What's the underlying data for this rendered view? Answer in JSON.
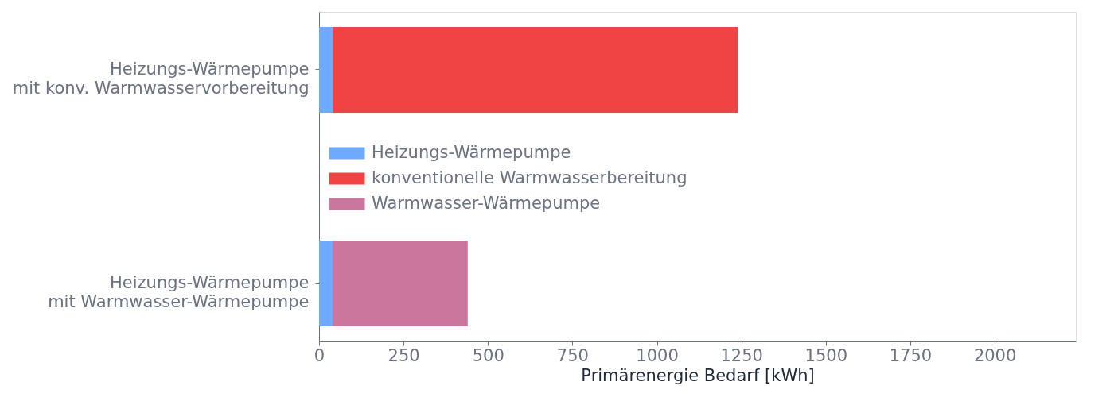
{
  "chart_data": {
    "type": "bar",
    "orientation": "horizontal",
    "stacked": true,
    "categories": [
      "Heizungs-Wärmepumpe\nmit konv. Warmwasservorbereitung",
      "Heizungs-Wärmepumpe\nmit Warmwasser-Wärmepumpe"
    ],
    "series": [
      {
        "name": "Heizungs-Wärmepumpe",
        "color": "#6eaaff",
        "values": [
          40,
          40
        ]
      },
      {
        "name": "konventionelle Warmwasserbereitung",
        "color": "#ef4444",
        "values": [
          1200,
          null
        ]
      },
      {
        "name": "Warmwasser-Wärmepumpe",
        "color": "#cb769c",
        "values": [
          null,
          400
        ]
      }
    ],
    "xlabel": "Primärenergie Bedarf [kWh]",
    "xlim": [
      0,
      2240
    ],
    "xticks": [
      0,
      250,
      500,
      750,
      1000,
      1250,
      1500,
      1750,
      2000
    ],
    "grid": false,
    "legend": "left"
  }
}
